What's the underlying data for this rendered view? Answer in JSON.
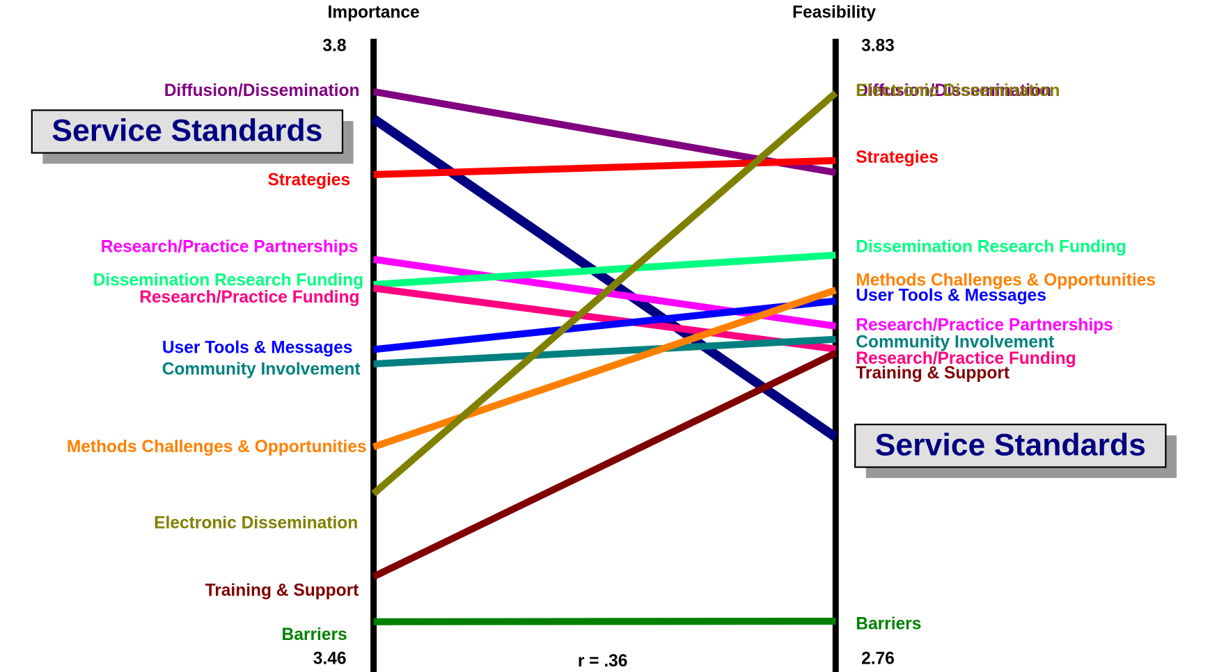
{
  "chart_data": {
    "type": "slope",
    "left_title": "Importance",
    "right_title": "Feasibility",
    "annotation": "r = .36",
    "ylim": [
      3.46,
      3.8
    ],
    "yticks": [
      3.46,
      3.8
    ],
    "y2lim": [
      2.76,
      3.83
    ],
    "y2ticks": [
      2.76,
      3.83
    ],
    "series": [
      {
        "name": "Diffusion/Dissemination",
        "color": "#800080",
        "values": [
          3.775,
          3.61
        ]
      },
      {
        "name": "Service Standards",
        "color": "#000080",
        "values": [
          3.76,
          3.148
        ]
      },
      {
        "name": "Strategies",
        "color": "#ff0000",
        "values": [
          3.729,
          3.631
        ]
      },
      {
        "name": "Research/Practice Partnerships",
        "color": "#ff00ff",
        "values": [
          3.682,
          3.342
        ]
      },
      {
        "name": "Dissemination Research Funding",
        "color": "#00ff80",
        "values": [
          3.668,
          3.466
        ]
      },
      {
        "name": "Research/Practice Funding",
        "color": "#ff0080",
        "values": [
          3.666,
          3.302
        ]
      },
      {
        "name": "User Tools & Messages",
        "color": "#0000ff",
        "values": [
          3.632,
          3.386
        ]
      },
      {
        "name": "Community Involvement",
        "color": "#008080",
        "values": [
          3.624,
          3.319
        ]
      },
      {
        "name": "Methods Challenges & Opportunities",
        "color": "#ff8000",
        "values": [
          3.578,
          3.405
        ]
      },
      {
        "name": "Electronic Dissemination",
        "color": "#808000",
        "values": [
          3.552,
          3.749
        ]
      },
      {
        "name": "Training & Support",
        "color": "#800000",
        "values": [
          3.506,
          3.295
        ]
      },
      {
        "name": "Barriers",
        "color": "#008000",
        "values": [
          3.481,
          2.827
        ]
      }
    ]
  }
}
